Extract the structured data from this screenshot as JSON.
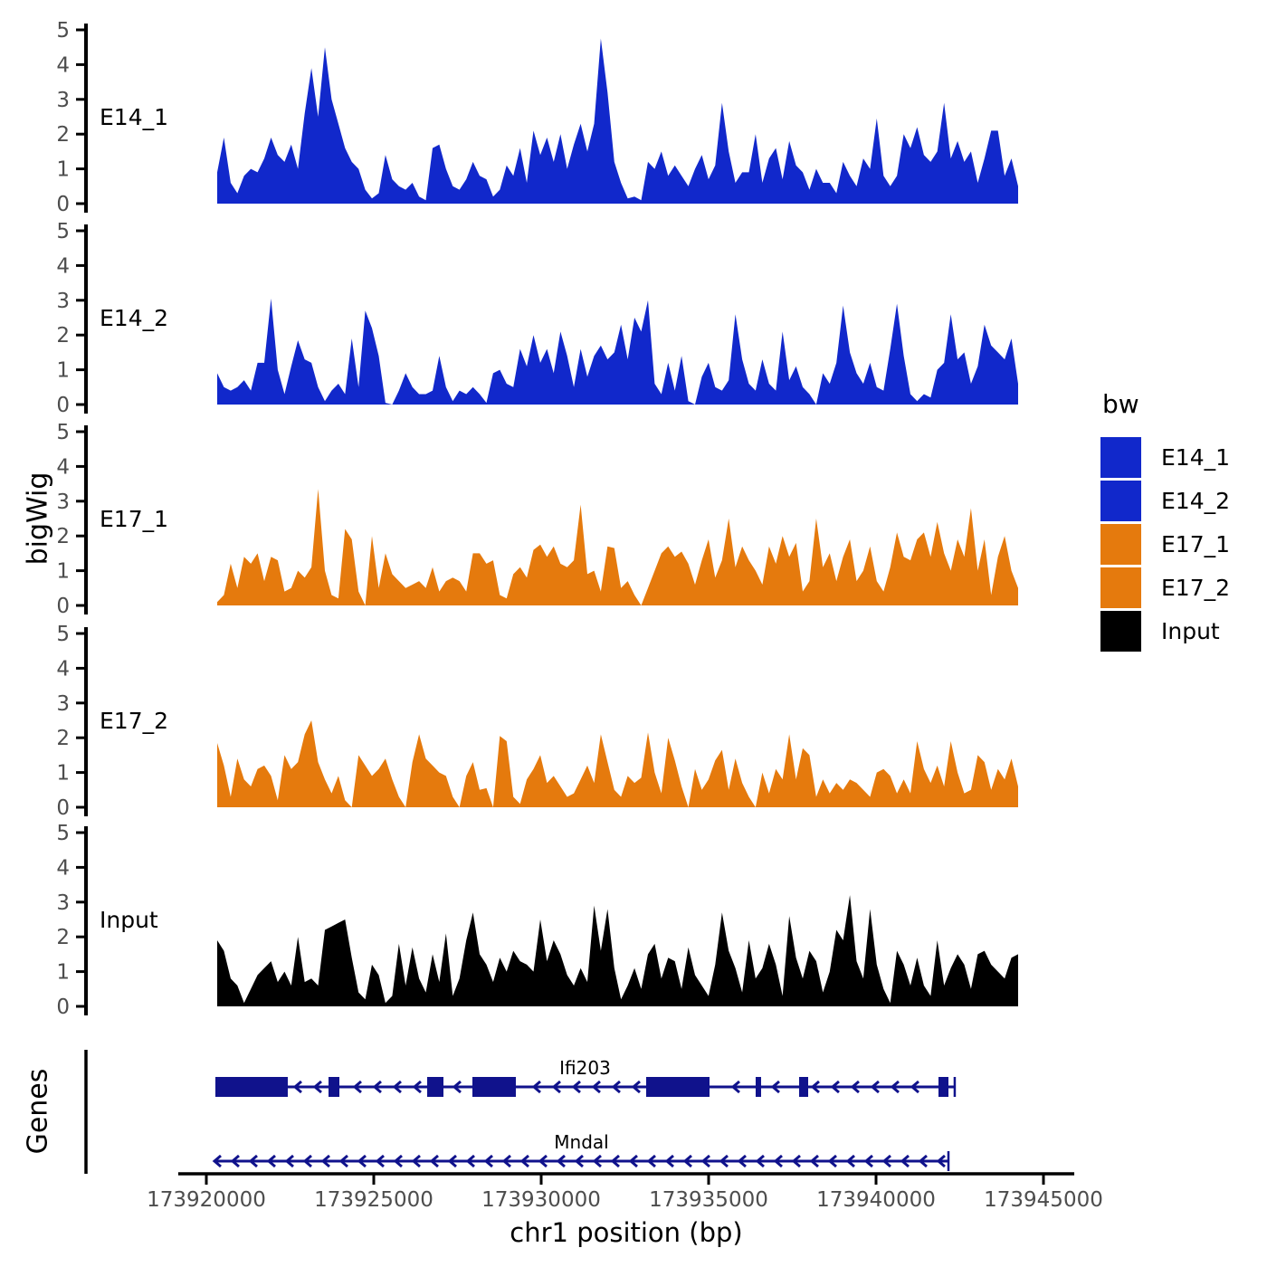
{
  "figure": {
    "ylabel": "bigWig",
    "genes_label": "Genes"
  },
  "legend": {
    "title": "bw",
    "items": [
      {
        "label": "E14_1",
        "color": "#1128CB"
      },
      {
        "label": "E14_2",
        "color": "#1128CB"
      },
      {
        "label": "E17_1",
        "color": "#E57A0D"
      },
      {
        "label": "E17_2",
        "color": "#E57A0D"
      },
      {
        "label": "Input",
        "color": "#000000"
      }
    ]
  },
  "chart_data": {
    "type": "area",
    "title": "",
    "xlabel": "chr1 position (bp)",
    "ylabel": "bigWig",
    "grid": false,
    "legend_position": "right",
    "ylim": [
      0,
      5
    ],
    "yticks": [
      0,
      1,
      2,
      3,
      4,
      5
    ],
    "xticks": [
      173920000,
      173925000,
      173930000,
      173935000,
      173940000,
      173945000
    ],
    "x_axis_range": [
      173919160,
      173945920
    ],
    "x_start": 173920324,
    "x_step": 201,
    "axis_text_color": "#4D4D4D",
    "gene_color": "#10128C",
    "series": [
      {
        "name": "E14_1",
        "color": "#1128CB",
        "values": [
          0.9,
          1.9,
          0.6,
          0.3,
          0.8,
          1.0,
          0.9,
          1.3,
          1.9,
          1.4,
          1.2,
          1.7,
          1.0,
          2.6,
          3.9,
          2.5,
          4.5,
          3.0,
          2.3,
          1.6,
          1.2,
          1.0,
          0.4,
          0.15,
          0.3,
          1.4,
          0.7,
          0.5,
          0.4,
          0.6,
          0.2,
          0.1,
          1.6,
          1.7,
          1.0,
          0.5,
          0.4,
          0.7,
          1.2,
          0.8,
          0.7,
          0.2,
          0.4,
          1.1,
          0.8,
          1.6,
          0.6,
          2.1,
          1.4,
          1.9,
          1.2,
          2.0,
          1.0,
          1.7,
          2.3,
          1.5,
          2.3,
          4.75,
          3.2,
          1.2,
          0.6,
          0.15,
          0.2,
          0.1,
          1.2,
          1.0,
          1.5,
          0.8,
          1.1,
          0.8,
          0.5,
          1.0,
          1.4,
          0.7,
          1.1,
          2.9,
          1.5,
          0.6,
          0.9,
          0.9,
          2.0,
          0.6,
          1.3,
          1.6,
          0.7,
          1.8,
          1.1,
          0.9,
          0.4,
          1.0,
          0.6,
          0.6,
          0.3,
          1.2,
          0.8,
          0.5,
          1.3,
          1.0,
          2.45,
          0.8,
          0.5,
          0.8,
          2.0,
          1.6,
          2.2,
          1.4,
          1.2,
          1.5,
          2.9,
          1.3,
          1.8,
          1.2,
          1.5,
          0.6,
          1.3,
          2.1,
          2.1,
          0.8,
          1.3,
          0.5
        ]
      },
      {
        "name": "E14_2",
        "color": "#1128CB",
        "values": [
          0.9,
          0.5,
          0.4,
          0.5,
          0.7,
          0.4,
          1.2,
          1.2,
          3.05,
          1.0,
          0.3,
          1.1,
          1.85,
          1.3,
          1.2,
          0.5,
          0.1,
          0.4,
          0.6,
          0.3,
          1.9,
          0.5,
          2.7,
          2.2,
          1.4,
          0.05,
          0.0,
          0.4,
          0.9,
          0.5,
          0.3,
          0.3,
          0.4,
          1.4,
          0.5,
          0.1,
          0.4,
          0.3,
          0.5,
          0.3,
          0.05,
          0.9,
          1.0,
          0.6,
          0.5,
          1.6,
          1.1,
          2.0,
          1.2,
          1.6,
          0.9,
          2.1,
          1.4,
          0.5,
          1.6,
          0.8,
          1.4,
          1.7,
          1.3,
          1.5,
          2.3,
          1.3,
          2.5,
          2.1,
          3.0,
          0.6,
          0.3,
          1.2,
          0.4,
          1.4,
          0.1,
          0.0,
          0.8,
          1.2,
          0.5,
          0.4,
          0.7,
          2.6,
          1.3,
          0.6,
          0.4,
          1.3,
          0.6,
          0.4,
          2.1,
          0.7,
          1.1,
          0.5,
          0.3,
          0.0,
          0.9,
          0.6,
          1.2,
          2.85,
          1.5,
          0.9,
          0.6,
          1.2,
          0.5,
          0.4,
          1.6,
          2.9,
          1.4,
          0.3,
          0.1,
          0.3,
          0.2,
          1.0,
          1.2,
          2.6,
          1.3,
          1.5,
          0.6,
          1.1,
          2.3,
          1.7,
          1.5,
          1.3,
          1.9,
          0.6
        ]
      },
      {
        "name": "E17_1",
        "color": "#E57A0D",
        "values": [
          0.1,
          0.3,
          1.2,
          0.5,
          1.4,
          1.2,
          1.5,
          0.7,
          1.4,
          1.3,
          0.4,
          0.5,
          1.0,
          0.8,
          1.1,
          3.35,
          1.0,
          0.3,
          0.2,
          2.2,
          1.9,
          0.4,
          0.0,
          2.0,
          0.5,
          1.5,
          0.9,
          0.7,
          0.5,
          0.6,
          0.7,
          0.5,
          1.1,
          0.4,
          0.7,
          0.8,
          0.7,
          0.4,
          1.5,
          1.5,
          1.2,
          1.3,
          0.3,
          0.2,
          0.9,
          1.1,
          0.8,
          1.6,
          1.75,
          1.4,
          1.7,
          1.2,
          1.1,
          1.3,
          2.9,
          0.9,
          1.0,
          0.4,
          1.7,
          1.65,
          0.5,
          0.7,
          0.3,
          0.0,
          0.5,
          1.0,
          1.5,
          1.7,
          1.4,
          1.55,
          1.2,
          0.6,
          1.3,
          1.9,
          0.8,
          1.3,
          2.5,
          1.1,
          1.7,
          1.3,
          1.0,
          0.6,
          1.7,
          1.2,
          2.0,
          1.4,
          1.8,
          0.4,
          0.7,
          2.5,
          1.1,
          1.5,
          0.7,
          1.4,
          1.9,
          0.7,
          1.0,
          1.7,
          0.7,
          0.4,
          1.1,
          2.1,
          1.4,
          1.3,
          1.9,
          2.1,
          1.4,
          2.4,
          1.5,
          1.0,
          1.9,
          1.4,
          2.8,
          1.0,
          1.9,
          0.3,
          1.4,
          2.0,
          1.0,
          0.5
        ]
      },
      {
        "name": "E17_2",
        "color": "#E57A0D",
        "values": [
          1.85,
          1.2,
          0.3,
          1.4,
          0.8,
          0.6,
          1.1,
          1.2,
          0.9,
          0.2,
          1.5,
          1.1,
          1.3,
          2.1,
          2.5,
          1.3,
          0.8,
          0.4,
          0.9,
          0.2,
          0.0,
          1.5,
          1.2,
          0.9,
          1.1,
          1.4,
          0.8,
          0.3,
          0.0,
          1.3,
          2.1,
          1.4,
          1.2,
          1.0,
          0.9,
          0.3,
          0.0,
          0.9,
          1.3,
          0.5,
          0.55,
          0.0,
          2.05,
          1.9,
          0.3,
          0.1,
          0.8,
          1.1,
          1.5,
          0.7,
          0.9,
          0.6,
          0.3,
          0.4,
          0.8,
          1.2,
          0.7,
          2.1,
          1.3,
          0.5,
          0.3,
          0.9,
          0.7,
          0.85,
          2.15,
          1.0,
          0.4,
          2.0,
          1.35,
          0.6,
          0.0,
          1.1,
          0.5,
          0.8,
          1.35,
          1.65,
          0.5,
          1.4,
          0.7,
          0.3,
          0.0,
          1.0,
          0.4,
          1.1,
          0.8,
          2.1,
          0.8,
          1.7,
          1.5,
          0.3,
          0.8,
          0.4,
          0.7,
          0.5,
          0.8,
          0.7,
          0.5,
          0.3,
          1.0,
          1.1,
          0.9,
          0.4,
          0.8,
          0.4,
          1.9,
          1.1,
          0.7,
          1.2,
          0.6,
          1.9,
          1.0,
          0.4,
          0.5,
          1.5,
          1.3,
          0.5,
          1.1,
          0.8,
          1.4,
          0.6
        ]
      },
      {
        "name": "Input",
        "color": "#000000",
        "values": [
          1.9,
          1.6,
          0.8,
          0.6,
          0.1,
          0.5,
          0.9,
          1.1,
          1.3,
          0.7,
          1.0,
          0.6,
          2.0,
          0.7,
          0.8,
          0.6,
          2.2,
          2.3,
          2.4,
          2.5,
          1.4,
          0.4,
          0.2,
          1.2,
          0.9,
          0.1,
          0.3,
          1.8,
          0.6,
          1.7,
          0.8,
          0.4,
          1.5,
          0.7,
          2.1,
          0.3,
          0.8,
          1.9,
          2.7,
          1.5,
          1.2,
          0.7,
          1.4,
          1.0,
          1.6,
          1.3,
          1.2,
          1.0,
          2.5,
          1.3,
          1.9,
          1.5,
          0.9,
          0.6,
          1.1,
          0.7,
          2.9,
          1.6,
          2.8,
          1.1,
          0.2,
          0.6,
          1.1,
          0.5,
          1.5,
          1.8,
          0.8,
          1.4,
          1.3,
          0.5,
          1.7,
          0.9,
          0.6,
          0.3,
          1.2,
          2.7,
          1.6,
          1.1,
          0.4,
          1.9,
          0.8,
          1.1,
          1.8,
          1.2,
          0.3,
          2.6,
          1.4,
          0.8,
          1.6,
          1.3,
          0.4,
          1.0,
          2.2,
          1.9,
          3.2,
          1.3,
          0.8,
          2.8,
          1.2,
          0.5,
          0.1,
          1.6,
          1.2,
          0.6,
          1.4,
          0.6,
          0.3,
          1.9,
          0.6,
          1.1,
          1.5,
          1.2,
          0.5,
          1.5,
          1.6,
          1.2,
          1.0,
          0.8,
          1.4,
          1.5
        ]
      }
    ],
    "genes": [
      {
        "name": "Ifi203",
        "strand": "-",
        "start": 173920270,
        "end": 173942350,
        "end_bar": 173942350,
        "exons": [
          [
            173920270,
            173922432
          ],
          [
            173923649,
            173923973
          ],
          [
            173926595,
            173927081
          ],
          [
            173927946,
            173929243
          ],
          [
            173933135,
            173935027
          ],
          [
            173936405,
            173936567
          ],
          [
            173937703,
            173937973
          ],
          [
            173941865,
            173942162
          ]
        ]
      },
      {
        "name": "Mndal",
        "strand": "-",
        "start": 173920243,
        "end": 173942162,
        "end_bar": 173942162,
        "exons": []
      }
    ]
  }
}
